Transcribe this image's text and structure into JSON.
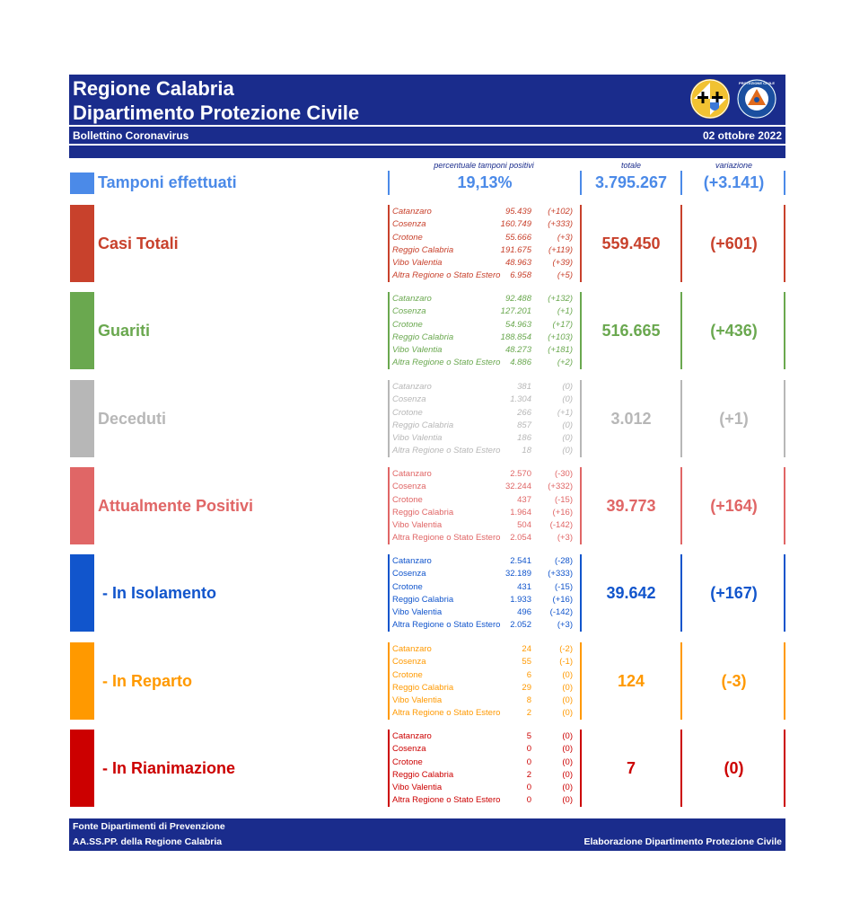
{
  "header": {
    "title_line1": "Regione Calabria",
    "title_line2": "Dipartimento Protezione Civile",
    "bulletin": "Bollettino Coronavirus",
    "date": "02 ottobre 2022",
    "logo_badge": "PROTEZIONE CIVILE"
  },
  "columns": {
    "pct_label": "percentuale tamponi positivi",
    "total_label": "totale",
    "var_label": "variazione"
  },
  "tamponi": {
    "label": "Tamponi effettuati",
    "pct": "19,13%",
    "total": "3.795.267",
    "variation": "(+3.141)"
  },
  "colors": {
    "header": "#1a2c8c",
    "tamponi": "#4b8ae8",
    "casi": "#c8412c",
    "guariti": "#6aa84f",
    "deceduti": "#b7b7b7",
    "positivi": "#e06666",
    "isolamento": "#1155cc",
    "reparto": "#ff9900",
    "rianimazione": "#cc0000"
  },
  "sections": [
    {
      "key": "casi",
      "label": "Casi Totali",
      "total": "559.450",
      "variation": "(+601)",
      "provinces": [
        {
          "name": "Catanzaro",
          "value": "95.439",
          "delta": "(+102)"
        },
        {
          "name": "Cosenza",
          "value": "160.749",
          "delta": "(+333)"
        },
        {
          "name": "Crotone",
          "value": "55.666",
          "delta": "(+3)"
        },
        {
          "name": "Reggio Calabria",
          "value": "191.675",
          "delta": "(+119)"
        },
        {
          "name": "Vibo Valentia",
          "value": "48.963",
          "delta": "(+39)"
        },
        {
          "name": "Altra Regione o Stato Estero",
          "value": "6.958",
          "delta": "(+5)"
        }
      ]
    },
    {
      "key": "guariti",
      "label": "Guariti",
      "total": "516.665",
      "variation": "(+436)",
      "provinces": [
        {
          "name": "Catanzaro",
          "value": "92.488",
          "delta": "(+132)"
        },
        {
          "name": "Cosenza",
          "value": "127.201",
          "delta": "(+1)"
        },
        {
          "name": "Crotone",
          "value": "54.963",
          "delta": "(+17)"
        },
        {
          "name": "Reggio Calabria",
          "value": "188.854",
          "delta": "(+103)"
        },
        {
          "name": "Vibo Valentia",
          "value": "48.273",
          "delta": "(+181)"
        },
        {
          "name": "Altra Regione o Stato Estero",
          "value": "4.886",
          "delta": "(+2)"
        }
      ]
    },
    {
      "key": "deceduti",
      "label": "Deceduti",
      "total": "3.012",
      "variation": "(+1)",
      "provinces": [
        {
          "name": "Catanzaro",
          "value": "381",
          "delta": "(0)"
        },
        {
          "name": "Cosenza",
          "value": "1.304",
          "delta": "(0)"
        },
        {
          "name": "Crotone",
          "value": "266",
          "delta": "(+1)"
        },
        {
          "name": "Reggio Calabria",
          "value": "857",
          "delta": "(0)"
        },
        {
          "name": "Vibo Valentia",
          "value": "186",
          "delta": "(0)"
        },
        {
          "name": "Altra Regione o Stato Estero",
          "value": "18",
          "delta": "(0)"
        }
      ]
    },
    {
      "key": "positivi",
      "label": "Attualmente Positivi",
      "total": "39.773",
      "variation": "(+164)",
      "provinces": [
        {
          "name": "Catanzaro",
          "value": "2.570",
          "delta": "(-30)"
        },
        {
          "name": "Cosenza",
          "value": "32.244",
          "delta": "(+332)"
        },
        {
          "name": "Crotone",
          "value": "437",
          "delta": "(-15)"
        },
        {
          "name": "Reggio Calabria",
          "value": "1.964",
          "delta": "(+16)"
        },
        {
          "name": "Vibo Valentia",
          "value": "504",
          "delta": "(-142)"
        },
        {
          "name": "Altra Regione o Stato Estero",
          "value": "2.054",
          "delta": "(+3)"
        }
      ]
    },
    {
      "key": "isolamento",
      "label": "- In Isolamento",
      "total": "39.642",
      "variation": "(+167)",
      "provinces": [
        {
          "name": "Catanzaro",
          "value": "2.541",
          "delta": "(-28)"
        },
        {
          "name": "Cosenza",
          "value": "32.189",
          "delta": "(+333)"
        },
        {
          "name": "Crotone",
          "value": "431",
          "delta": "(-15)"
        },
        {
          "name": "Reggio Calabria",
          "value": "1.933",
          "delta": "(+16)"
        },
        {
          "name": "Vibo Valentia",
          "value": "496",
          "delta": "(-142)"
        },
        {
          "name": "Altra Regione o Stato Estero",
          "value": "2.052",
          "delta": "(+3)"
        }
      ]
    },
    {
      "key": "reparto",
      "label": "- In Reparto",
      "total": "124",
      "variation": "(-3)",
      "provinces": [
        {
          "name": "Catanzaro",
          "value": "24",
          "delta": "(-2)"
        },
        {
          "name": "Cosenza",
          "value": "55",
          "delta": "(-1)"
        },
        {
          "name": "Crotone",
          "value": "6",
          "delta": "(0)"
        },
        {
          "name": "Reggio Calabria",
          "value": "29",
          "delta": "(0)"
        },
        {
          "name": "Vibo Valentia",
          "value": "8",
          "delta": "(0)"
        },
        {
          "name": "Altra Regione o Stato Estero",
          "value": "2",
          "delta": "(0)"
        }
      ]
    },
    {
      "key": "rianimazione",
      "label": "- In Rianimazione",
      "total": "7",
      "variation": "(0)",
      "provinces": [
        {
          "name": "Catanzaro",
          "value": "5",
          "delta": "(0)"
        },
        {
          "name": "Cosenza",
          "value": "0",
          "delta": "(0)"
        },
        {
          "name": "Crotone",
          "value": "0",
          "delta": "(0)"
        },
        {
          "name": "Reggio Calabria",
          "value": "2",
          "delta": "(0)"
        },
        {
          "name": "Vibo Valentia",
          "value": "0",
          "delta": "(0)"
        },
        {
          "name": "Altra Regione o Stato Estero",
          "value": "0",
          "delta": "(0)"
        }
      ]
    }
  ],
  "footer": {
    "source_line1": "Fonte Dipartimenti di Prevenzione",
    "source_line2": "AA.SS.PP.  della Regione Calabria",
    "elaboration": "Elaborazione Dipartimento Protezione Civile"
  }
}
